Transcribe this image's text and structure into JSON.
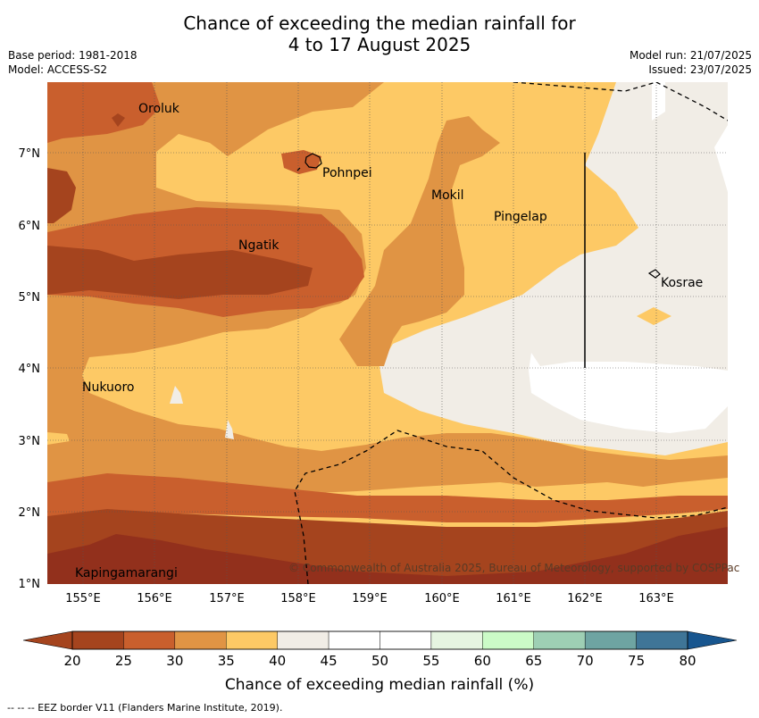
{
  "title": {
    "line1": "Chance of exceeding the median rainfall for",
    "line2": "4 to 17 August 2025"
  },
  "meta": {
    "base_period": "Base period: 1981-2018",
    "model": "Model: ACCESS-S2",
    "model_run": "Model run: 21/07/2025",
    "issued": "Issued: 23/07/2025"
  },
  "map": {
    "lon_range": [
      154.5,
      164.0
    ],
    "lat_range": [
      1.0,
      8.0
    ],
    "lon_ticks": [
      "155°E",
      "156°E",
      "157°E",
      "158°E",
      "159°E",
      "160°E",
      "161°E",
      "162°E",
      "163°E"
    ],
    "lat_ticks": [
      "1°N",
      "2°N",
      "3°N",
      "4°N",
      "5°N",
      "6°N",
      "7°N"
    ],
    "places": [
      "Oroluk",
      "Pohnpei",
      "Mokil",
      "Pingelap",
      "Ngatik",
      "Kosrae",
      "Nukuoro",
      "Kapingamarangi"
    ],
    "copyright": "© Commonwealth of Australia 2025, Bureau of Meteorology, supported by COSPPac"
  },
  "colorbar": {
    "ticks": [
      "20",
      "25",
      "30",
      "35",
      "40",
      "45",
      "50",
      "55",
      "60",
      "65",
      "70",
      "75",
      "80"
    ],
    "colors": [
      "#a5441e",
      "#c95f2d",
      "#e09444",
      "#fdc965",
      "#f1ede6",
      "#ffffff",
      "#ffffff",
      "#e6f5e1",
      "#cbfbc7",
      "#9ecfb4",
      "#6ea4a2",
      "#3f7597",
      "#18568f"
    ],
    "label": "Chance of exceeding median rainfall (%)"
  },
  "footer": "-- -- -- EEZ border V11 (Flanders Marine Institute, 2019)."
}
